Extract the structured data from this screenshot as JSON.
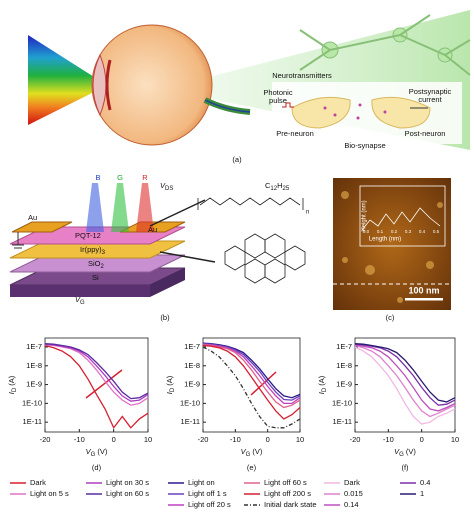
{
  "figure": {
    "a": {
      "label": "(a)",
      "neurotransmitters": "Neurotransmitters",
      "photonic_pulse": [
        "Photonic",
        "pulse"
      ],
      "postsynaptic_current": [
        "Postsynaptic",
        "current"
      ],
      "pre_neuron": "Pre-neuron",
      "bio_synapse": "Bio-synapse",
      "post_neuron": "Post-neuron"
    },
    "b": {
      "label": "(b)",
      "blue": "B",
      "green": "G",
      "red": "R",
      "vds": "V",
      "vds_sub": "DS",
      "au_left": "Au",
      "au_right": "Au",
      "pqt": "PQT-12",
      "ir": "Ir(ppy)",
      "ir_sub": "3",
      "sio": "SiO",
      "sio_sub": "2",
      "si": "Si",
      "vg": "V",
      "vg_sub": "G",
      "alkyl_c": "C",
      "alkyl_c_sub": "12",
      "alkyl_h": "H",
      "alkyl_h_sub": "25",
      "n": "n"
    },
    "c": {
      "label": "(c)",
      "scale_bar": "100 nm",
      "inset_x": "Length (nm)",
      "inset_y": "Height (nm)",
      "inset_xticks": [
        "0.0",
        "0.1",
        "0.2",
        "0.3",
        "0.4",
        "0.5"
      ]
    }
  },
  "chart_data": [
    {
      "type": "line",
      "panel": "(d)",
      "yscale": "log",
      "xlabel": {
        "main": "V",
        "sub": "G",
        "unit": "(V)"
      },
      "ylabel": {
        "main": "I",
        "sub": "D",
        "unit": "(A)"
      },
      "xlim": [
        -20,
        10
      ],
      "xticks": [
        -20,
        -10,
        0,
        10
      ],
      "ylim": [
        3e-12,
        3e-07
      ],
      "yticks": [
        {
          "value": 1e-07,
          "label": "1E-7"
        },
        {
          "value": 1e-08,
          "label": "1E-8"
        },
        {
          "value": 1e-09,
          "label": "1E-9"
        },
        {
          "value": 1e-10,
          "label": "1E-10"
        },
        {
          "value": 1e-11,
          "label": "1E-11"
        }
      ],
      "legend_columns": 2,
      "x": [
        -20,
        -17.5,
        -15,
        -12.5,
        -10,
        -7.5,
        -5,
        -2.5,
        0,
        2.5,
        5,
        7.5,
        10
      ],
      "series": [
        {
          "name": "Dark",
          "color": "#d62031",
          "values": [
            1.2e-07,
            9e-08,
            6e-08,
            3e-08,
            1e-08,
            2e-09,
            3e-10,
            5e-11,
            5e-12,
            2e-11,
            5e-12,
            1.5e-11,
            3e-11
          ]
        },
        {
          "name": "Light on 5 s",
          "color": "#e070c8",
          "values": [
            1.3e-07,
            1.2e-07,
            1e-07,
            8e-08,
            5e-08,
            2e-08,
            6e-09,
            1.5e-09,
            4e-10,
            1.5e-10,
            8e-11,
            1e-10,
            2e-10
          ]
        },
        {
          "name": "Light on 30 s",
          "color": "#b03cc0",
          "values": [
            1.4e-07,
            1.3e-07,
            1.1e-07,
            9e-08,
            6e-08,
            3e-08,
            1e-08,
            3e-09,
            8e-10,
            2.5e-10,
            1.3e-10,
            1.5e-10,
            3e-10
          ]
        },
        {
          "name": "Light on 60 s",
          "color": "#5a2aa0",
          "values": [
            1.5e-07,
            1.4e-07,
            1.2e-07,
            1e-07,
            7e-08,
            4e-08,
            1.5e-08,
            5e-09,
            1.5e-09,
            4e-10,
            1.8e-10,
            2e-10,
            3.5e-10
          ]
        }
      ]
    },
    {
      "type": "line",
      "panel": "(e)",
      "yscale": "log",
      "xlabel": {
        "main": "V",
        "sub": "G",
        "unit": "(V)"
      },
      "ylabel": {
        "main": "I",
        "sub": "D",
        "unit": "(A)"
      },
      "xlim": [
        -20,
        10
      ],
      "xticks": [
        -20,
        -10,
        0,
        10
      ],
      "ylim": [
        3e-12,
        3e-07
      ],
      "yticks": [
        {
          "value": 1e-07,
          "label": "1E-7"
        },
        {
          "value": 1e-08,
          "label": "1E-8"
        },
        {
          "value": 1e-09,
          "label": "1E-9"
        },
        {
          "value": 1e-10,
          "label": "1E-10"
        },
        {
          "value": 1e-11,
          "label": "1E-11"
        }
      ],
      "legend_columns": 2,
      "x": [
        -20,
        -17.5,
        -15,
        -12.5,
        -10,
        -7.5,
        -5,
        -2.5,
        0,
        2.5,
        5,
        7.5,
        10
      ],
      "series": [
        {
          "name": "Light on",
          "color": "#2a1a8a",
          "values": [
            1.6e-07,
            1.5e-07,
            1.3e-07,
            1.1e-07,
            8e-08,
            5e-08,
            2e-08,
            7e-09,
            2e-09,
            6e-10,
            2.5e-10,
            2e-10,
            3e-10
          ]
        },
        {
          "name": "Light off 1 s",
          "color": "#6a40b8",
          "values": [
            1.5e-07,
            1.4e-07,
            1.2e-07,
            1e-07,
            7e-08,
            4e-08,
            1.5e-08,
            5e-09,
            1.3e-09,
            4e-10,
            1.6e-10,
            1.5e-10,
            2.5e-10
          ]
        },
        {
          "name": "Light off 20 s",
          "color": "#c040c0",
          "values": [
            1.4e-07,
            1.3e-07,
            1.1e-07,
            9e-08,
            6e-08,
            3e-08,
            1e-08,
            3e-09,
            8e-10,
            2.5e-10,
            1e-10,
            1e-10,
            2e-10
          ]
        },
        {
          "name": "Light off 60 s",
          "color": "#e0608e",
          "values": [
            1.3e-07,
            1.2e-07,
            1e-07,
            8e-08,
            5e-08,
            2e-08,
            6e-09,
            1.5e-09,
            4e-10,
            1.2e-10,
            6e-11,
            8e-11,
            1.5e-10
          ]
        },
        {
          "name": "Light off 200 s",
          "color": "#d62031",
          "values": [
            1.2e-07,
            1.1e-07,
            9e-08,
            6e-08,
            3e-08,
            1e-08,
            2.5e-09,
            6e-10,
            1.5e-10,
            4e-11,
            1.5e-11,
            2.5e-11,
            6e-11
          ]
        },
        {
          "name": "Initial dark state",
          "color": "#333333",
          "dash": true,
          "values": [
            1e-07,
            6e-08,
            3e-08,
            1e-08,
            3e-09,
            6e-10,
            1e-10,
            2e-11,
            6e-12,
            5e-12,
            5e-12,
            8e-12,
            1.5e-11
          ]
        }
      ]
    },
    {
      "type": "line",
      "panel": "(f)",
      "yscale": "log",
      "xlabel": {
        "main": "V",
        "sub": "G",
        "unit": "(V)"
      },
      "ylabel": {
        "main": "I",
        "sub": "D",
        "unit": "(A)"
      },
      "xlim": [
        -20,
        10
      ],
      "xticks": [
        -20,
        -10,
        0,
        10
      ],
      "ylim": [
        3e-12,
        3e-07
      ],
      "yticks": [
        {
          "value": 1e-07,
          "label": "1E-7"
        },
        {
          "value": 1e-08,
          "label": "1E-8"
        },
        {
          "value": 1e-09,
          "label": "1E-9"
        },
        {
          "value": 1e-10,
          "label": "1E-10"
        },
        {
          "value": 1e-11,
          "label": "1E-11"
        }
      ],
      "legend_columns": 2,
      "x": [
        -20,
        -17.5,
        -15,
        -12.5,
        -10,
        -7.5,
        -5,
        -2.5,
        0,
        2.5,
        5,
        7.5,
        10
      ],
      "series": [
        {
          "name": "Dark",
          "color": "#f0b8e4",
          "values": [
            1e-07,
            6e-08,
            3e-08,
            1e-08,
            3e-09,
            6e-10,
            1e-10,
            2e-11,
            8e-12,
            1e-11,
            2e-11,
            3e-11,
            5e-11
          ]
        },
        {
          "name": "0.015",
          "color": "#e080d0",
          "values": [
            1.2e-07,
            9e-08,
            6e-08,
            3e-08,
            1e-08,
            3e-09,
            7e-10,
            1.5e-10,
            4e-11,
            2e-11,
            3e-11,
            5e-11,
            8e-11
          ]
        },
        {
          "name": "0.14",
          "color": "#c050c0",
          "values": [
            1.3e-07,
            1.1e-07,
            9e-08,
            6e-08,
            3e-08,
            1e-08,
            3e-09,
            7e-10,
            1.5e-10,
            5e-11,
            4e-11,
            6e-11,
            1e-10
          ]
        },
        {
          "name": "0.4",
          "color": "#7a30a8",
          "values": [
            1.4e-07,
            1.3e-07,
            1.1e-07,
            9e-08,
            6e-08,
            3e-08,
            1e-08,
            3e-09,
            7e-10,
            2e-10,
            8e-11,
            9e-11,
            1.5e-10
          ]
        },
        {
          "name": "1",
          "color": "#2a1a70",
          "values": [
            1.5e-07,
            1.4e-07,
            1.2e-07,
            1e-07,
            8e-08,
            5e-08,
            2e-08,
            6e-09,
            1.5e-09,
            4e-10,
            1.5e-10,
            1.2e-10,
            2e-10
          ]
        }
      ]
    }
  ]
}
